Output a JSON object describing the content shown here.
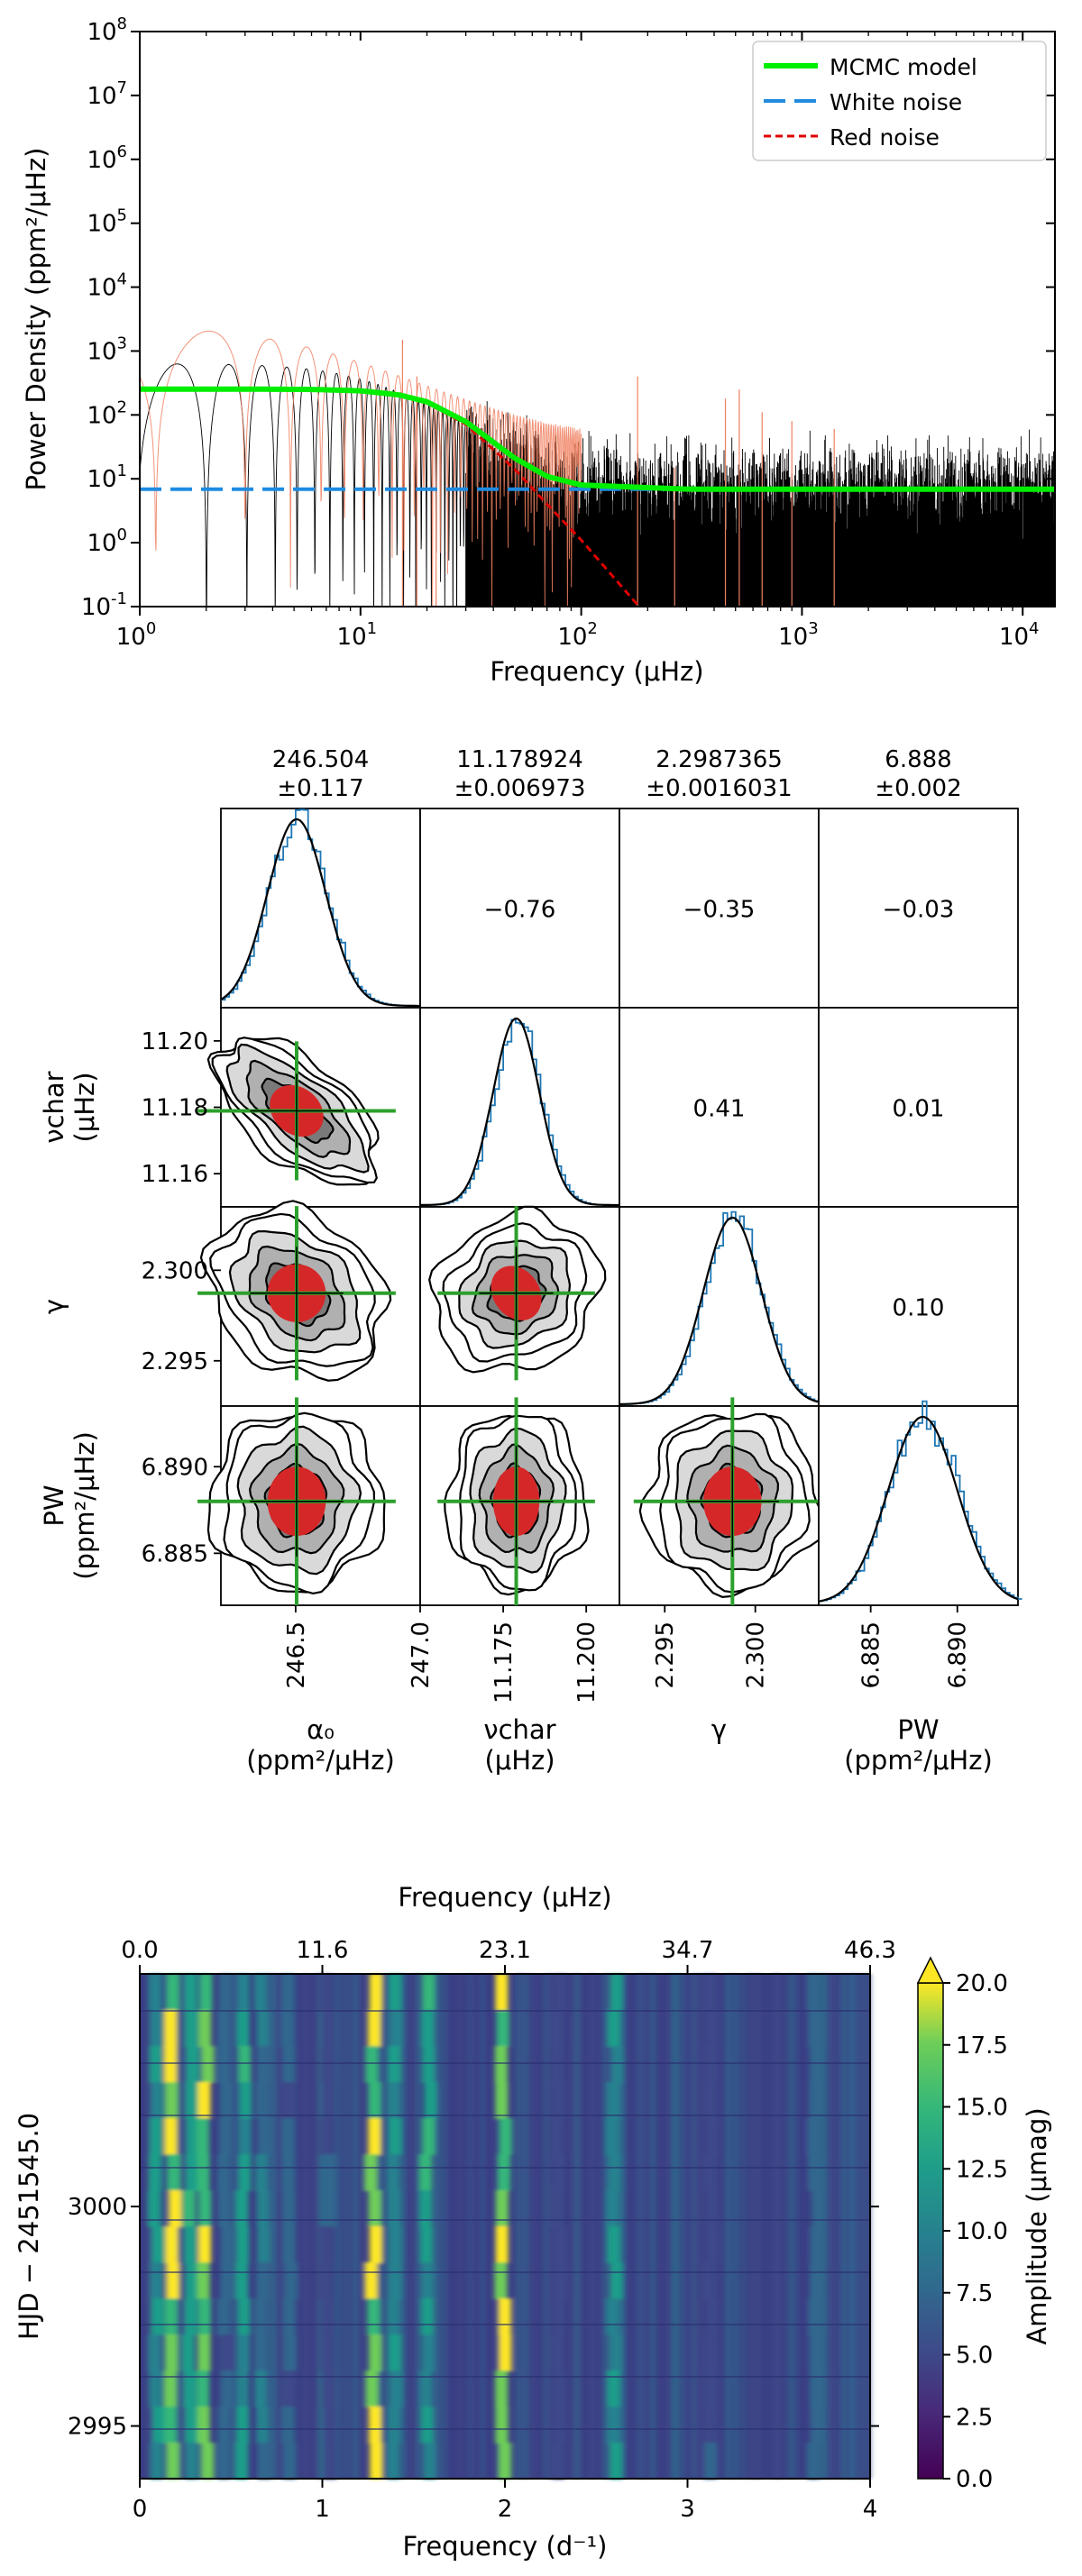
{
  "chart_data": [
    {
      "type": "line",
      "xlabel": "Frequency (μHz)",
      "ylabel": "Power Density (ppm²/μHz)",
      "xscale": "log",
      "yscale": "log",
      "xlim": [
        1,
        14000
      ],
      "ylim": [
        0.1,
        100000000
      ],
      "x_ticks": [
        "10^0",
        "10^1",
        "10^2",
        "10^3",
        "10^4"
      ],
      "y_ticks": [
        "10^-1",
        "10^0",
        "10^1",
        "10^2",
        "10^3",
        "10^4",
        "10^5",
        "10^6",
        "10^7",
        "10^8"
      ],
      "legend_position": "top-right",
      "series": [
        {
          "name": "MCMC model",
          "color": "#00ee00",
          "style": "solid",
          "x": [
            1,
            3,
            6,
            10,
            15,
            20,
            30,
            50,
            70,
            100,
            300,
            1000,
            14000
          ],
          "y": [
            253.4,
            253.1,
            250.5,
            238.7,
            205.5,
            160.5,
            78.3,
            21.0,
            10.9,
            8.0,
            6.9,
            6.89,
            6.89
          ]
        },
        {
          "name": "White noise",
          "color": "#1f8be0",
          "style": "dashed",
          "x": [
            1,
            14000
          ],
          "y": [
            6.888,
            6.888
          ]
        },
        {
          "name": "Red noise",
          "color": "#e00000",
          "style": "dashed",
          "x": [
            1,
            3,
            6,
            10,
            15,
            20,
            30,
            50,
            70,
            100,
            150,
            200,
            300
          ],
          "y": [
            246.5,
            246.2,
            243.6,
            231.8,
            198.6,
            153.6,
            71.4,
            14.1,
            4.0,
            1.1,
            0.22,
            0.07,
            0.014
          ]
        },
        {
          "name": "",
          "color": "#000000",
          "style": "thin",
          "description": "periodogram noise band",
          "x": [
            1,
            14000
          ],
          "y": [
            6.888,
            6.888
          ]
        },
        {
          "name": "",
          "color": "#f08060",
          "style": "thin",
          "x": [
            1,
            1.5,
            10,
            15,
            100
          ],
          "y": [
            3000,
            2500,
            1000,
            1500,
            100
          ]
        }
      ]
    },
    {
      "type": "corner",
      "parameters": [
        "α0",
        "νchar",
        "γ",
        "PW"
      ],
      "summaries": [
        {
          "value": "246.504",
          "err": "±0.117"
        },
        {
          "value": "11.178924",
          "err": "±0.006973"
        },
        {
          "value": "2.2987365",
          "err": "±0.0016031"
        },
        {
          "value": "6.888",
          "err": "±0.002"
        }
      ],
      "correlations": {
        "r0c1": "−0.76",
        "r0c2": "−0.35",
        "r0c3": "−0.03",
        "r1c2": "0.41",
        "r1c3": "0.01",
        "r2c3": "0.10"
      },
      "axis_ranges": {
        "alpha0": [
          246.2,
          247.0
        ],
        "nu_char": [
          11.15,
          11.21
        ],
        "gamma": [
          2.2925,
          2.3035
        ],
        "P_W": [
          6.882,
          6.8935
        ]
      },
      "means": {
        "alpha0": 246.504,
        "nu_char": 11.178924,
        "gamma": 2.2987365,
        "P_W": 6.888
      },
      "sigmas": {
        "alpha0": 0.117,
        "nu_char": 0.006973,
        "gamma": 0.0016031,
        "P_W": 0.002
      },
      "x_tick_labels": [
        [
          "246.5",
          "247.0"
        ],
        [
          "11.175",
          "11.200"
        ],
        [
          "2.295",
          "2.300"
        ],
        [
          "6.885",
          "6.890"
        ]
      ],
      "x_tick_values": [
        [
          246.5,
          247.0
        ],
        [
          11.175,
          11.2
        ],
        [
          2.295,
          2.3
        ],
        [
          6.885,
          6.89
        ]
      ],
      "y_tick_labels": [
        [
          "11.20",
          "11.18",
          "11.16"
        ],
        [
          "2.300",
          "2.295"
        ],
        [
          "6.890",
          "6.885"
        ]
      ],
      "y_tick_values": [
        [
          11.2,
          11.18,
          11.16
        ],
        [
          2.3,
          2.295
        ],
        [
          6.89,
          6.885
        ]
      ],
      "xlabels": [
        [
          "α₀",
          "(ppm²/μHz)"
        ],
        [
          "νchar",
          "(μHz)"
        ],
        [
          "γ",
          ""
        ],
        [
          "PW",
          "(ppm²/μHz)"
        ]
      ],
      "ylabels": [
        [
          "νchar",
          "(μHz)"
        ],
        [
          "γ",
          ""
        ],
        [
          "PW",
          "(ppm²/μHz)"
        ]
      ]
    },
    {
      "type": "heatmap",
      "xlabel": "Frequency (d⁻¹)",
      "xlabel_top": "Frequency (μHz)",
      "ylabel": "HJD − 2451545.0",
      "xlim": [
        0,
        4
      ],
      "top_ticks": [
        "0.0",
        "11.6",
        "23.1",
        "34.7",
        "46.3"
      ],
      "bottom_ticks": [
        "0",
        "1",
        "2",
        "3",
        "4"
      ],
      "y_ticks": [
        "3000",
        "2995"
      ],
      "y_tick_values": [
        3000,
        2995
      ],
      "ylim": [
        2993.8,
        3005.3
      ],
      "colorbar_label": "Amplitude (μmag)",
      "colorbar_ticks": [
        "0.0",
        "2.5",
        "5.0",
        "7.5",
        "10.0",
        "12.5",
        "15.0",
        "17.5",
        "20.0"
      ],
      "colorbar_range": [
        0,
        20
      ],
      "colormap": "viridis",
      "ridges": [
        {
          "freq": 0.09,
          "amp": 12
        },
        {
          "freq": 0.18,
          "amp": 20
        },
        {
          "freq": 0.28,
          "amp": 14
        },
        {
          "freq": 0.36,
          "amp": 20
        },
        {
          "freq": 0.47,
          "amp": 8
        },
        {
          "freq": 0.57,
          "amp": 13
        },
        {
          "freq": 0.67,
          "amp": 9
        },
        {
          "freq": 0.82,
          "amp": 8
        },
        {
          "freq": 1.03,
          "amp": 6
        },
        {
          "freq": 1.28,
          "amp": 20
        },
        {
          "freq": 1.4,
          "amp": 12
        },
        {
          "freq": 1.58,
          "amp": 13
        },
        {
          "freq": 1.99,
          "amp": 20
        },
        {
          "freq": 2.3,
          "amp": 5
        },
        {
          "freq": 2.6,
          "amp": 12
        },
        {
          "freq": 3.13,
          "amp": 6
        },
        {
          "freq": 3.7,
          "amp": 8
        }
      ]
    }
  ]
}
